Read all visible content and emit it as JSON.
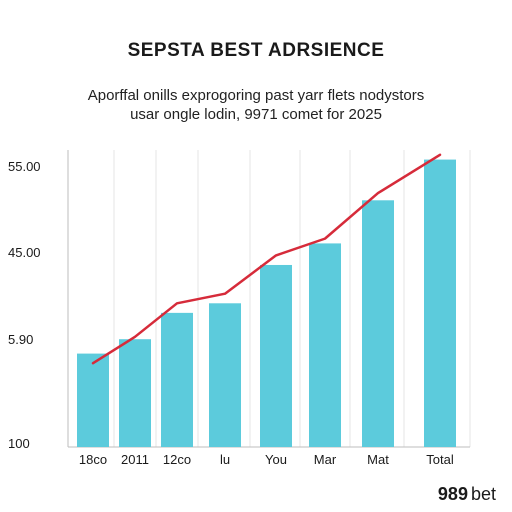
{
  "chart_data": {
    "type": "bar",
    "title": "SEPSTA BEST ADRSIENCE",
    "subtitle": [
      "Aporffal onills exprogoring past yarr flets nodystors",
      "usar ongle lodin, 9971 comet for 2025"
    ],
    "categories": [
      "18co",
      "2011",
      "12co",
      "lu",
      "You",
      "Mar",
      "Mat",
      "Total"
    ],
    "values": [
      19.5,
      22.5,
      28,
      30,
      38,
      42.5,
      51.5,
      60
    ],
    "line": [
      17.5,
      23,
      30,
      32,
      40,
      43.5,
      53,
      61
    ],
    "ytick_labels": [
      "55.00",
      "45.00",
      "5.90",
      "100"
    ],
    "bar_color": "#5ccbdc",
    "line_color": "#d62b3a",
    "ylim": [
      0,
      62
    ],
    "grid": "vertical"
  },
  "brand": {
    "number": "989",
    "text": "bet"
  }
}
